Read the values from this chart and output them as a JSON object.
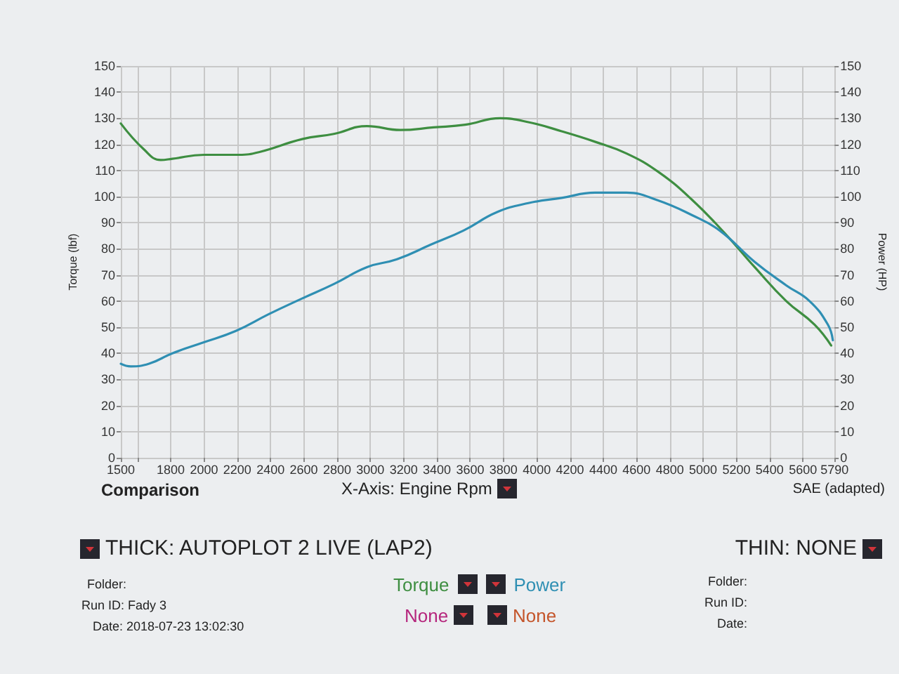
{
  "chart_data": {
    "type": "line",
    "xlabel": "X-Axis: Engine Rpm",
    "ylabel": "Torque (lbf)",
    "y2label": "Power (HP)",
    "series": [
      {
        "name": "Torque",
        "color": "#3e8e41",
        "x": [
          1500,
          1640,
          1740,
          1810,
          2000,
          2210,
          2330,
          2590,
          2780,
          2980,
          3180,
          3380,
          3570,
          3780,
          3950,
          4150,
          4350,
          4540,
          4730,
          4930,
          5130,
          5310,
          5500,
          5670,
          5770
        ],
        "values": [
          128,
          118,
          114,
          114.5,
          116,
          116,
          117,
          122,
          124,
          127,
          125.5,
          126.5,
          127.5,
          130,
          128.5,
          125,
          121,
          116.5,
          109.5,
          99,
          86,
          73,
          60,
          51,
          43
        ]
      },
      {
        "name": "Power",
        "color": "#2f8fb3",
        "axis": "y2",
        "x": [
          1500,
          1560,
          1670,
          1810,
          1990,
          2190,
          2390,
          2590,
          2780,
          2980,
          3160,
          3360,
          3560,
          3760,
          3950,
          4150,
          4350,
          4540,
          4730,
          4930,
          5100,
          5310,
          5500,
          5640,
          5750,
          5780
        ],
        "values": [
          36,
          35,
          36,
          40,
          44,
          48.5,
          55,
          61,
          66.5,
          73,
          76,
          81.5,
          87,
          94,
          97.5,
          99.5,
          101.5,
          101.5,
          98.5,
          93,
          87,
          75,
          66,
          60,
          51,
          45
        ]
      }
    ],
    "xlim": [
      1500,
      5790
    ],
    "xticks": [
      1500,
      {
        "value": 1600,
        "label": null
      },
      1800,
      2000,
      2200,
      2400,
      2600,
      2800,
      3000,
      3200,
      3400,
      3600,
      3800,
      4000,
      4200,
      4400,
      4600,
      4800,
      5000,
      5200,
      5400,
      5600,
      5790
    ],
    "ylim": [
      0,
      150
    ],
    "yticks": [
      0,
      10,
      20,
      30,
      40,
      50,
      60,
      70,
      80,
      90,
      100,
      110,
      120,
      130,
      140,
      150
    ],
    "y2lim": [
      0,
      150
    ],
    "y2ticks": [
      0,
      10,
      20,
      30,
      40,
      50,
      60,
      70,
      80,
      90,
      100,
      110,
      120,
      130,
      140,
      150
    ],
    "grid": true,
    "legend": "bottom",
    "annotations": [
      "Comparison",
      "SAE (adapted)",
      "THICK: AUTOPLOT 2 LIVE (LAP2)",
      "THIN: NONE",
      "Folder:",
      "Run ID: Fady 3",
      "Date: 2018-07-23 13:02:30",
      "None",
      "None",
      "Folder:",
      "Run ID:",
      "Date:"
    ]
  }
}
